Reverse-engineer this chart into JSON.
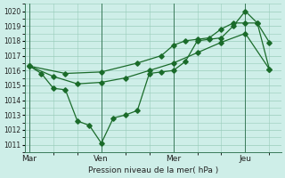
{
  "title": "Pression niveau de la mer( hPa )",
  "background_color": "#ceeee8",
  "grid_color": "#99ccbb",
  "line_color": "#1a6b2a",
  "ylim": [
    1010.5,
    1020.5
  ],
  "yticks": [
    1011,
    1012,
    1013,
    1014,
    1015,
    1016,
    1017,
    1018,
    1019,
    1020
  ],
  "day_labels": [
    "Mar",
    "Ven",
    "Mer",
    "Jeu"
  ],
  "day_positions": [
    0,
    3,
    6,
    9
  ],
  "xlim": [
    -0.2,
    10.5
  ],
  "series1_x": [
    0,
    0.5,
    1.0,
    1.5,
    2.0,
    2.5,
    3.0,
    3.5,
    4.0,
    4.5,
    5.0,
    5.5,
    6.0,
    6.5,
    7.0,
    7.5,
    8.0,
    8.5,
    9.0,
    9.5,
    10.0
  ],
  "series1_y": [
    1016.3,
    1015.8,
    1014.8,
    1014.7,
    1012.6,
    1012.3,
    1011.1,
    1012.8,
    1013.0,
    1013.3,
    1015.8,
    1015.9,
    1016.0,
    1016.6,
    1018.0,
    1018.1,
    1018.2,
    1019.0,
    1020.0,
    1019.2,
    1016.1
  ],
  "series2_x": [
    0,
    1.5,
    3.0,
    4.5,
    5.5,
    6.0,
    6.5,
    7.0,
    7.5,
    8.0,
    8.5,
    9.0,
    9.5,
    10.0
  ],
  "series2_y": [
    1016.3,
    1015.8,
    1015.9,
    1016.5,
    1017.0,
    1017.7,
    1018.0,
    1018.1,
    1018.2,
    1018.8,
    1019.2,
    1019.2,
    1019.2,
    1017.9
  ],
  "series3_x": [
    0,
    1.0,
    2.0,
    3.0,
    4.0,
    5.0,
    6.0,
    7.0,
    8.0,
    9.0,
    10.0
  ],
  "series3_y": [
    1016.3,
    1015.6,
    1015.1,
    1015.2,
    1015.5,
    1016.0,
    1016.5,
    1017.2,
    1017.9,
    1018.5,
    1016.1
  ]
}
